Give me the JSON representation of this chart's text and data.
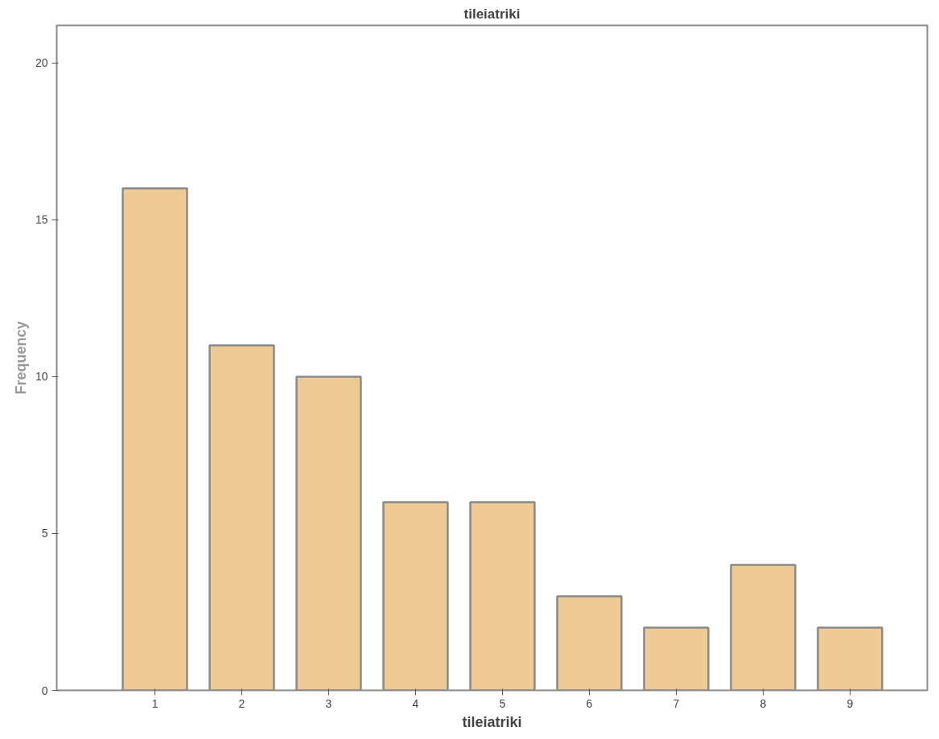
{
  "chart_data": {
    "type": "bar",
    "title": "tileiatriki",
    "xlabel": "tileiatriki",
    "ylabel": "Frequency",
    "categories": [
      "1",
      "2",
      "3",
      "4",
      "5",
      "6",
      "7",
      "8",
      "9"
    ],
    "values": [
      16,
      11,
      10,
      6,
      6,
      3,
      2,
      4,
      2
    ],
    "color": "#eecb95",
    "ylim": [
      0,
      21.2
    ],
    "yticks": [
      0,
      5,
      10,
      15,
      20
    ],
    "grid": false
  }
}
